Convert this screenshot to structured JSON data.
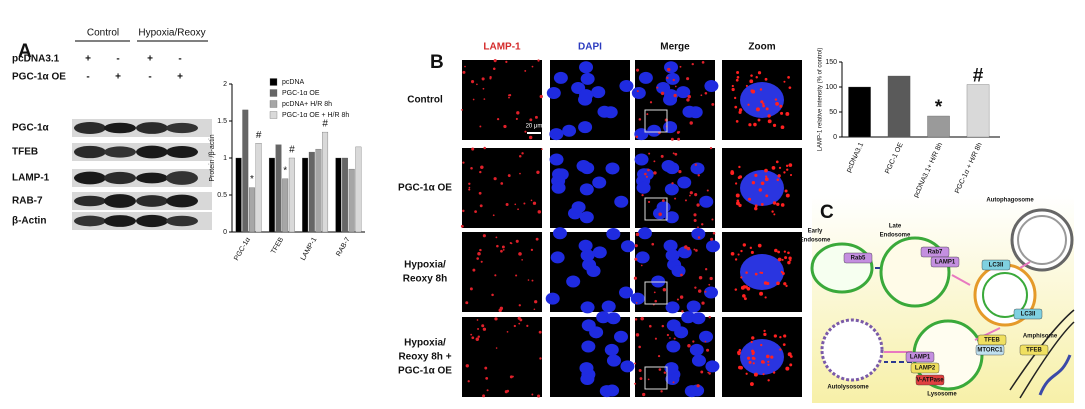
{
  "panel_labels": [
    "A",
    "B",
    "C"
  ],
  "blot": {
    "group_headers": [
      "Control",
      "Hypoxia/Reoxy"
    ],
    "treatments": [
      {
        "name": "pcDNA3.1",
        "signs": [
          "+",
          "-",
          "+",
          "-"
        ]
      },
      {
        "name": "PGC-1α OE",
        "signs": [
          "-",
          "+",
          "-",
          "+"
        ]
      }
    ],
    "proteins": [
      "PGC-1α",
      "TFEB",
      "LAMP-1",
      "RAB-7",
      "β-Actin"
    ]
  },
  "microscopy": {
    "columns": [
      "LAMP-1",
      "DAPI",
      "Merge",
      "Zoom"
    ],
    "rows": [
      [
        "Control"
      ],
      [
        "PGC-1α OE"
      ],
      [
        "Hypoxia/",
        "Reoxy 8h"
      ],
      [
        "Hypoxia/",
        "Reoxy 8h +",
        "PGC-1α OE"
      ]
    ],
    "scale_bar": "20 μm"
  },
  "diagram": {
    "labels": [
      [
        "Autophagosome"
      ],
      [
        "Early",
        "Endosome"
      ],
      [
        "Late",
        "Endosome"
      ],
      [
        "Rab5"
      ],
      [
        "Rab7"
      ],
      [
        "LAMP1"
      ],
      [
        "LC3II"
      ],
      [
        "LC3II"
      ],
      [
        "Amphisome"
      ],
      [
        "TFEB"
      ],
      [
        "MTORC1"
      ],
      [
        "LAMP1"
      ],
      [
        "LAMP2"
      ],
      [
        "V-ATPase"
      ],
      [
        "TFEB"
      ],
      [
        "Autolysosome"
      ],
      [
        "Lysosome"
      ]
    ]
  },
  "chart_data": [
    {
      "type": "bar",
      "y_label": "Protein /β-actin",
      "categories": [
        "PGC-1α",
        "TFEB",
        "LAMP-1",
        "RAB-7"
      ],
      "series": [
        {
          "name": "pcDNA",
          "color": "#000000",
          "values": [
            1,
            1,
            1,
            1
          ],
          "markers": [
            null,
            null,
            null,
            null
          ]
        },
        {
          "name": "PGC-1α OE",
          "color": "#666666",
          "values": [
            1.65,
            1.18,
            1.08,
            1.0
          ],
          "markers": [
            null,
            null,
            null,
            null
          ]
        },
        {
          "name": "pcDNA+ H/R 8h",
          "color": "#a6a6a6",
          "values": [
            0.6,
            0.72,
            1.12,
            0.85
          ],
          "markers": [
            "*",
            "*",
            null,
            null
          ]
        },
        {
          "name": "PGC-1α OE + H/R 8h",
          "color": "#d9d9d9",
          "values": [
            1.2,
            1.0,
            1.35,
            1.15
          ],
          "markers": [
            "#",
            "#",
            "#",
            null
          ]
        }
      ],
      "ylim": [
        0,
        2
      ],
      "yticks": [
        0,
        0.5,
        1,
        1.5,
        2
      ],
      "grid": false
    },
    {
      "type": "bar",
      "y_label": "LAMP-1 relative intensity (% of control)",
      "categories": [
        "pcDNA3.1",
        "PGC-1 OE",
        "pcDNA3.1+ H/R 8h",
        "PGC-1α + H/R 8h"
      ],
      "values": [
        100,
        122,
        42,
        105
      ],
      "colors": [
        "#000000",
        "#5a5a5a",
        "#9a9a9a",
        "#d9d9d9"
      ],
      "markers": [
        null,
        null,
        "*",
        "#"
      ],
      "ylim": [
        0,
        150
      ],
      "yticks": [
        0,
        50,
        100,
        150
      ],
      "grid": false
    }
  ]
}
